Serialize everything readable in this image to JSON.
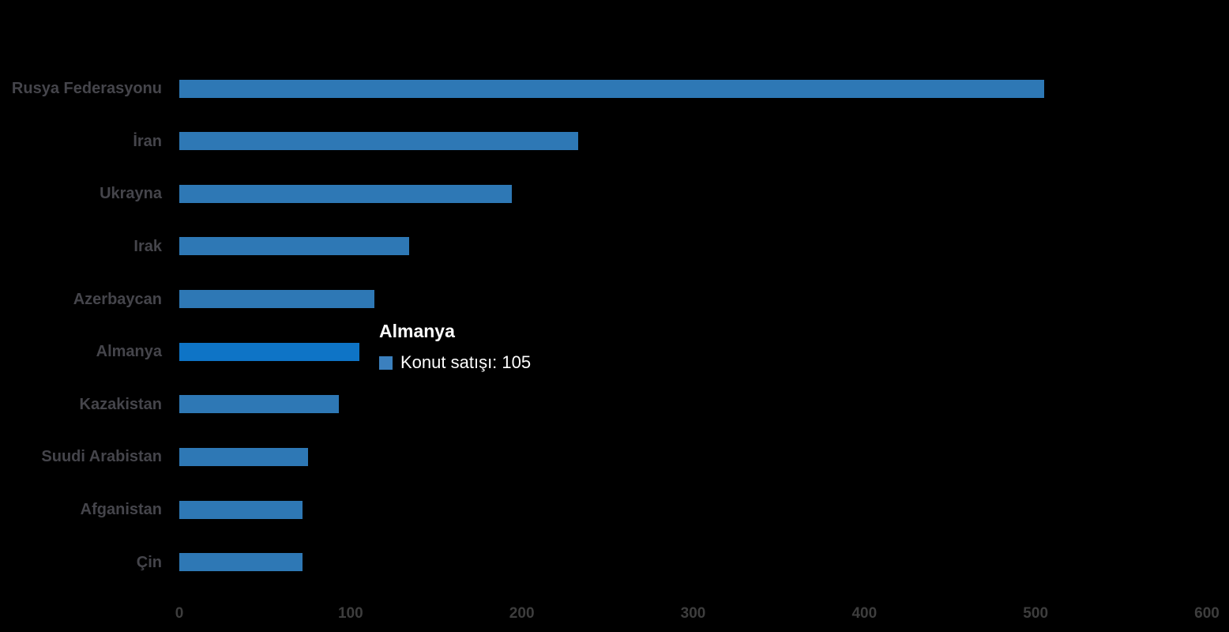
{
  "colors": {
    "background": "#000000",
    "bar": "#2E78B5",
    "bar_highlight": "#0E74C6",
    "category_label": "#45454b",
    "axis_label": "#3d3d3d",
    "tooltip_text": "#ffffff",
    "tooltip_marker": "#3B80BE"
  },
  "chart_data": {
    "type": "bar",
    "orientation": "horizontal",
    "title": "",
    "xlabel": "",
    "ylabel": "",
    "series_name": "Konut satışı",
    "categories": [
      "Rusya Federasyonu",
      "İran",
      "Ukrayna",
      "Irak",
      "Azerbaycan",
      "Almanya",
      "Kazakistan",
      "Suudi Arabistan",
      "Afganistan",
      "Çin"
    ],
    "values": [
      505,
      233,
      194,
      134,
      114,
      105,
      93,
      75,
      72,
      72
    ],
    "xlim": [
      0,
      600
    ],
    "x_ticks": [
      0,
      100,
      200,
      300,
      400,
      500,
      600
    ],
    "grid": false,
    "highlighted_category": "Almanya",
    "legend_position": "none"
  },
  "tooltip": {
    "title": "Almanya",
    "label": "Konut satışı: 105"
  }
}
